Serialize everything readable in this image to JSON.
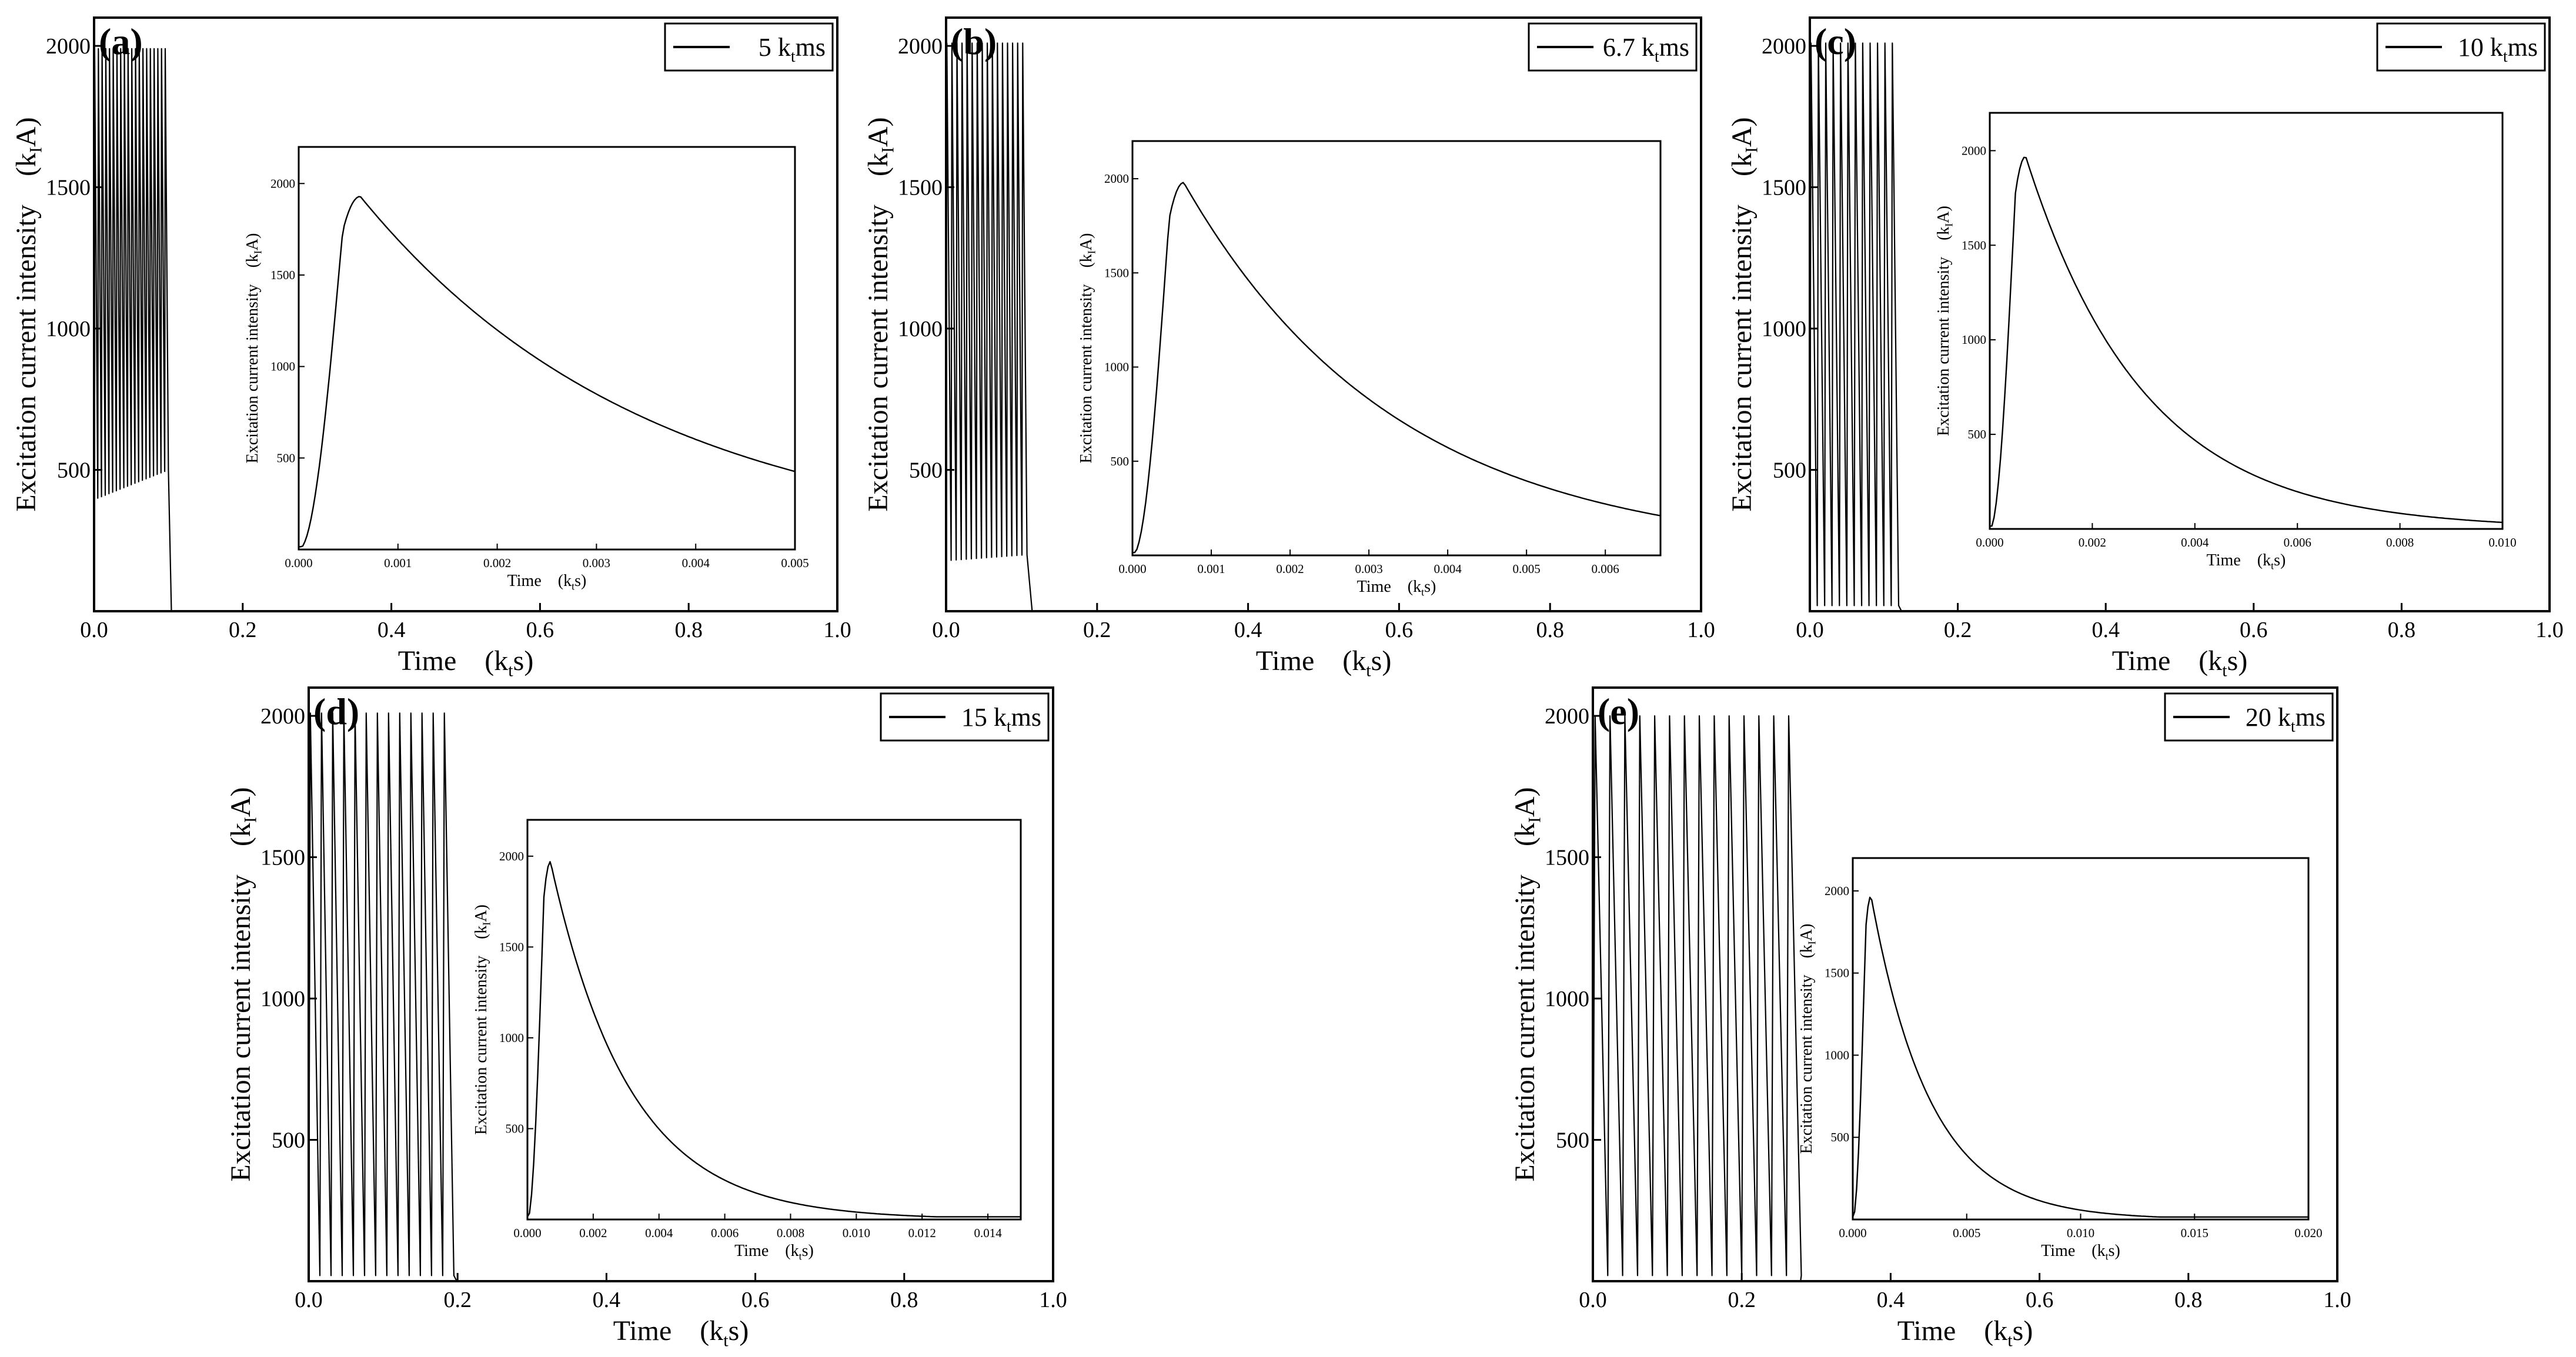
{
  "figure": {
    "colors": {
      "line": "#000000",
      "background": "#ffffff"
    }
  },
  "chart_data": [
    {
      "id": "a",
      "type": "line",
      "panel_label": "(a)",
      "legend": "5 k",
      "legend_sub": "t",
      "legend_post": "ms",
      "xlabel": "Time　(k",
      "xlabel_sub": "t",
      "xlabel_post": "s)",
      "ylabel": "Excitation current intensity　(k",
      "ylabel_sub": "I",
      "ylabel_post": "A)",
      "xlim": [
        0,
        1.0
      ],
      "ylim": [
        0,
        2100
      ],
      "xticks": [
        0.0,
        0.2,
        0.4,
        0.6,
        0.8,
        1.0
      ],
      "xtick_labels": [
        "0.0",
        "0.2",
        "0.4",
        "0.6",
        "0.8",
        "1.0"
      ],
      "yticks": [
        500,
        1000,
        1500,
        2000
      ],
      "ytick_labels": [
        "500",
        "1000",
        "1500",
        "2000"
      ],
      "pulse": {
        "period": 0.005,
        "t_end": 0.1,
        "peak": 1990,
        "min_start": 400,
        "min_end": 500
      },
      "inset": {
        "xlabel": "Time　(k",
        "xlabel_sub": "t",
        "xlabel_post": "s)",
        "ylabel": "Excitation current intensity　(k",
        "ylabel_sub": "I",
        "ylabel_post": "A)",
        "xlim": [
          0,
          0.005
        ],
        "ylim": [
          0,
          2200
        ],
        "xticks": [
          0.0,
          0.001,
          0.002,
          0.003,
          0.004,
          0.005
        ],
        "xtick_labels": [
          "0.000",
          "0.001",
          "0.002",
          "0.003",
          "0.004",
          "0.005"
        ],
        "yticks": [
          500,
          1000,
          1500,
          2000
        ],
        "ytick_labels": [
          "500",
          "1000",
          "1500",
          "2000"
        ],
        "peak_t": 0.00062,
        "peak_v": 1930,
        "tau": 0.0029
      }
    },
    {
      "id": "b",
      "type": "line",
      "panel_label": "(b)",
      "legend": "6.7 k",
      "legend_sub": "t",
      "legend_post": "ms",
      "xlabel": "Time　(k",
      "xlabel_sub": "t",
      "xlabel_post": "s)",
      "ylabel": "Excitation current intensity　(k",
      "ylabel_sub": "I",
      "ylabel_post": "A)",
      "xlim": [
        0,
        1.0
      ],
      "ylim": [
        0,
        2100
      ],
      "xticks": [
        0.0,
        0.2,
        0.4,
        0.6,
        0.8,
        1.0
      ],
      "xtick_labels": [
        "0.0",
        "0.2",
        "0.4",
        "0.6",
        "0.8",
        "1.0"
      ],
      "yticks": [
        500,
        1000,
        1500,
        2000
      ],
      "ytick_labels": [
        "500",
        "1000",
        "1500",
        "2000"
      ],
      "pulse": {
        "period": 0.0067,
        "t_end": 0.11,
        "peak": 2010,
        "min_start": 180,
        "min_end": 200
      },
      "inset": {
        "xlabel": "Time　(k",
        "xlabel_sub": "t",
        "xlabel_post": "s)",
        "ylabel": "Excitation current intensity　(k",
        "ylabel_sub": "I",
        "ylabel_post": "A)",
        "xlim": [
          0,
          0.0067
        ],
        "ylim": [
          0,
          2200
        ],
        "xticks": [
          0.0,
          0.001,
          0.002,
          0.003,
          0.004,
          0.005,
          0.006
        ],
        "xtick_labels": [
          "0.000",
          "0.001",
          "0.002",
          "0.003",
          "0.004",
          "0.005",
          "0.006"
        ],
        "yticks": [
          500,
          1000,
          1500,
          2000
        ],
        "ytick_labels": [
          "500",
          "1000",
          "1500",
          "2000"
        ],
        "peak_t": 0.00065,
        "peak_v": 1980,
        "tau": 0.0027
      }
    },
    {
      "id": "c",
      "type": "line",
      "panel_label": "(c)",
      "legend": "10 k",
      "legend_sub": "t",
      "legend_post": "ms",
      "xlabel": "Time　(k",
      "xlabel_sub": "t",
      "xlabel_post": "s)",
      "ylabel": "Excitation current intensity　(k",
      "ylabel_sub": "I",
      "ylabel_post": "A)",
      "xlim": [
        0,
        1.0
      ],
      "ylim": [
        0,
        2100
      ],
      "xticks": [
        0.0,
        0.2,
        0.4,
        0.6,
        0.8,
        1.0
      ],
      "xtick_labels": [
        "0.0",
        "0.2",
        "0.4",
        "0.6",
        "0.8",
        "1.0"
      ],
      "yticks": [
        500,
        1000,
        1500,
        2000
      ],
      "ytick_labels": [
        "500",
        "1000",
        "1500",
        "2000"
      ],
      "pulse": {
        "period": 0.01,
        "t_end": 0.12,
        "peak": 2010,
        "min_start": 20,
        "min_end": 20
      },
      "inset": {
        "xlabel": "Time　(k",
        "xlabel_sub": "t",
        "xlabel_post": "s)",
        "ylabel": "Excitation current intensity　(k",
        "ylabel_sub": "I",
        "ylabel_post": "A)",
        "xlim": [
          0,
          0.01
        ],
        "ylim": [
          0,
          2200
        ],
        "xticks": [
          0.0,
          0.002,
          0.004,
          0.006,
          0.008,
          0.01
        ],
        "xtick_labels": [
          "0.000",
          "0.002",
          "0.004",
          "0.006",
          "0.008",
          "0.010"
        ],
        "yticks": [
          500,
          1000,
          1500,
          2000
        ],
        "ytick_labels": [
          "500",
          "1000",
          "1500",
          "2000"
        ],
        "peak_t": 0.0007,
        "peak_v": 1970,
        "tau": 0.0023
      }
    },
    {
      "id": "d",
      "type": "line",
      "panel_label": "(d)",
      "legend": "15 k",
      "legend_sub": "t",
      "legend_post": "ms",
      "xlabel": "Time　(k",
      "xlabel_sub": "t",
      "xlabel_post": "s)",
      "ylabel": "Excitation current intensity　(k",
      "ylabel_sub": "I",
      "ylabel_post": "A)",
      "xlim": [
        0,
        1.0
      ],
      "ylim": [
        0,
        2100
      ],
      "xticks": [
        0.0,
        0.2,
        0.4,
        0.6,
        0.8,
        1.0
      ],
      "xtick_labels": [
        "0.0",
        "0.2",
        "0.4",
        "0.6",
        "0.8",
        "1.0"
      ],
      "yticks": [
        500,
        1000,
        1500,
        2000
      ],
      "ytick_labels": [
        "500",
        "1000",
        "1500",
        "2000"
      ],
      "pulse": {
        "period": 0.015,
        "t_end": 0.195,
        "peak": 2010,
        "min_start": 20,
        "min_end": 20
      },
      "inset": {
        "xlabel": "Time　(k",
        "xlabel_sub": "t",
        "xlabel_post": "s)",
        "ylabel": "Excitation current intensity　(k",
        "ylabel_sub": "I",
        "ylabel_post": "A)",
        "xlim": [
          0,
          0.015
        ],
        "ylim": [
          0,
          2200
        ],
        "xticks": [
          0.0,
          0.002,
          0.004,
          0.006,
          0.008,
          0.01,
          0.012,
          0.014
        ],
        "xtick_labels": [
          "0.000",
          "0.002",
          "0.004",
          "0.006",
          "0.008",
          "0.010",
          "0.012",
          "0.014"
        ],
        "yticks": [
          500,
          1000,
          1500,
          2000
        ],
        "ytick_labels": [
          "500",
          "1000",
          "1500",
          "2000"
        ],
        "peak_t": 0.0007,
        "peak_v": 1970,
        "tau": 0.0024
      }
    },
    {
      "id": "e",
      "type": "line",
      "panel_label": "(e)",
      "legend": "20 k",
      "legend_sub": "t",
      "legend_post": "ms",
      "xlabel": "Time　(k",
      "xlabel_sub": "t",
      "xlabel_post": "s)",
      "ylabel": "Excitation current intensity　(k",
      "ylabel_sub": "I",
      "ylabel_post": "A)",
      "xlim": [
        0,
        1.0
      ],
      "ylim": [
        0,
        2100
      ],
      "xticks": [
        0.0,
        0.2,
        0.4,
        0.6,
        0.8,
        1.0
      ],
      "xtick_labels": [
        "0.0",
        "0.2",
        "0.4",
        "0.6",
        "0.8",
        "1.0"
      ],
      "yticks": [
        500,
        1000,
        1500,
        2000
      ],
      "ytick_labels": [
        "500",
        "1000",
        "1500",
        "2000"
      ],
      "pulse": {
        "period": 0.02,
        "t_end": 0.275,
        "peak": 2000,
        "min_start": 20,
        "min_end": 20
      },
      "inset": {
        "xlabel": "Time　(k",
        "xlabel_sub": "t",
        "xlabel_post": "s)",
        "ylabel": "Excitation current intensity　(k",
        "ylabel_sub": "I",
        "ylabel_post": "A)",
        "xlim": [
          0,
          0.02
        ],
        "ylim": [
          0,
          2200
        ],
        "xticks": [
          0.0,
          0.005,
          0.01,
          0.015,
          0.02
        ],
        "xtick_labels": [
          "0.000",
          "0.005",
          "0.010",
          "0.015",
          "0.020"
        ],
        "yticks": [
          500,
          1000,
          1500,
          2000
        ],
        "ytick_labels": [
          "500",
          "1000",
          "1500",
          "2000"
        ],
        "peak_t": 0.0008,
        "peak_v": 1970,
        "tau": 0.0026
      }
    }
  ]
}
